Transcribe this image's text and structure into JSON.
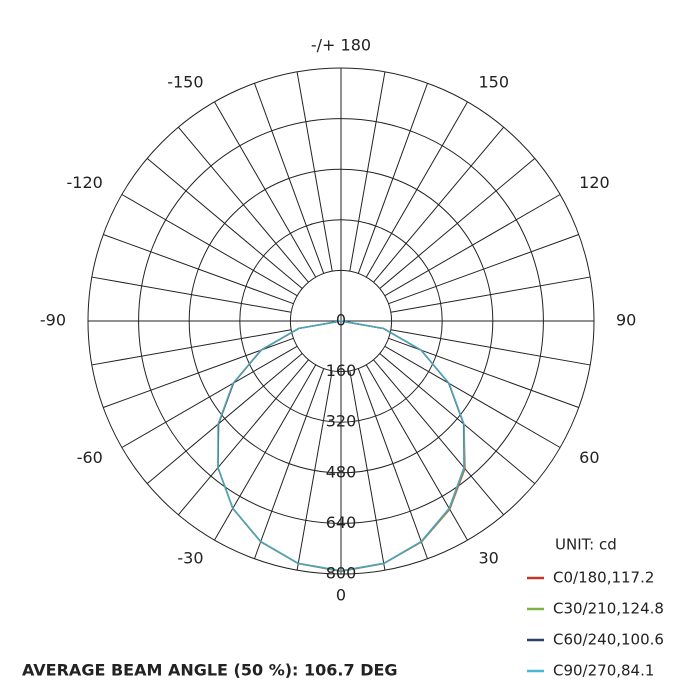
{
  "chart_data": {
    "type": "polar",
    "unit_label": "UNIT: cd",
    "note": "AVERAGE BEAM ANGLE (50 %): 106.7 DEG",
    "theta": [
      -90,
      -80,
      -70,
      -60,
      -50,
      -40,
      -30,
      -20,
      -10,
      0,
      10,
      20,
      30,
      40,
      50,
      60,
      70,
      80,
      90
    ],
    "series": [
      {
        "name": "C0/180,117.2",
        "color": "#c0392b",
        "values": [
          0,
          135,
          268,
          392,
          505,
          605,
          684,
          743,
          779,
          792,
          779,
          744,
          688,
          610,
          508,
          394,
          270,
          137,
          0
        ]
      },
      {
        "name": "C30/210,124.8",
        "color": "#7cb342",
        "values": [
          0,
          136,
          270,
          394,
          507,
          606,
          685,
          743,
          779,
          791,
          779,
          743,
          686,
          607,
          507,
          394,
          270,
          136,
          0
        ]
      },
      {
        "name": "C60/240,100.6",
        "color": "#2c3e70",
        "values": [
          0,
          136,
          269,
          393,
          506,
          605,
          684,
          742,
          778,
          790,
          778,
          742,
          684,
          605,
          506,
          393,
          269,
          136,
          0
        ]
      },
      {
        "name": "C90/270,84.1",
        "color": "#4bb8d0",
        "values": [
          0,
          137,
          270,
          395,
          508,
          605,
          684,
          742,
          778,
          790,
          778,
          742,
          684,
          605,
          508,
          395,
          270,
          137,
          0
        ]
      }
    ],
    "rlim": [
      0,
      800
    ],
    "rticks": [
      0,
      160,
      320,
      480,
      640,
      800
    ],
    "thetaticks": [
      {
        "value": 180,
        "label": "-/+ 180"
      },
      -150,
      150,
      -120,
      120,
      -90,
      90,
      -60,
      60,
      -30,
      30,
      0
    ],
    "theta_grid_step": 10
  }
}
